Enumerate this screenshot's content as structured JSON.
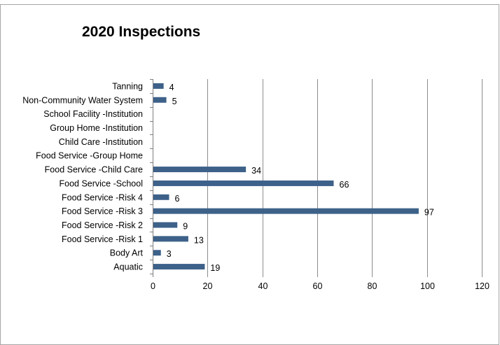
{
  "chart_data": {
    "type": "bar",
    "orientation": "horizontal",
    "title": "2020 Inspections",
    "categories": [
      "Tanning",
      "Non-Community Water System",
      "School Facility -Institution",
      "Group Home -Institution",
      "Child Care -Institution",
      "Food Service -Group Home",
      "Food Service -Child Care",
      "Food Service -School",
      "Food Service -Risk 4",
      "Food Service -Risk 3",
      "Food Service -Risk 2",
      "Food Service -Risk 1",
      "Body Art",
      "Aquatic"
    ],
    "values": [
      4,
      5,
      null,
      null,
      null,
      null,
      34,
      66,
      6,
      97,
      9,
      13,
      3,
      19
    ],
    "data_labels": [
      "4",
      "5",
      "",
      "",
      "",
      "",
      "34",
      "66",
      "6",
      "97",
      "9",
      "13",
      "3",
      "19"
    ],
    "xlim": [
      0,
      120
    ],
    "xticks": [
      "0",
      "20",
      "40",
      "60",
      "80",
      "100",
      "120"
    ],
    "xtick_values": [
      0,
      20,
      40,
      60,
      80,
      100,
      120
    ],
    "grid": "vertical",
    "legend": "none",
    "bar_color": "#3d6189",
    "grid_color": "#8c8c8c",
    "frame_color": "#a6a6a6"
  }
}
